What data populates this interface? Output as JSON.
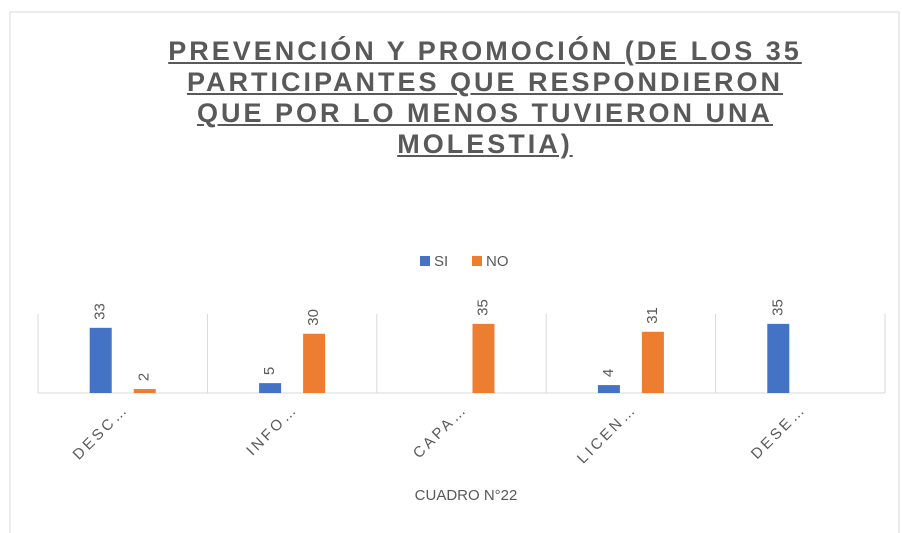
{
  "chart_data": {
    "type": "bar",
    "title": "PREVENCIÓN Y PROMOCIÓN (DE LOS 35 PARTICIPANTES QUE RESPONDIERON QUE POR LO MENOS TUVIERON UNA MOLESTIA)",
    "categories": [
      "DESC…",
      "INFO…",
      "CAPA…",
      "LICEN…",
      "DESE…"
    ],
    "series": [
      {
        "name": "SI",
        "color": "#4472c4",
        "values": [
          33,
          5,
          null,
          4,
          35
        ]
      },
      {
        "name": "NO",
        "color": "#ed7d31",
        "values": [
          2,
          30,
          35,
          31,
          null
        ]
      }
    ],
    "x_label": "CUADRO N°22",
    "ylim": [
      0,
      40
    ],
    "legend": "top"
  }
}
